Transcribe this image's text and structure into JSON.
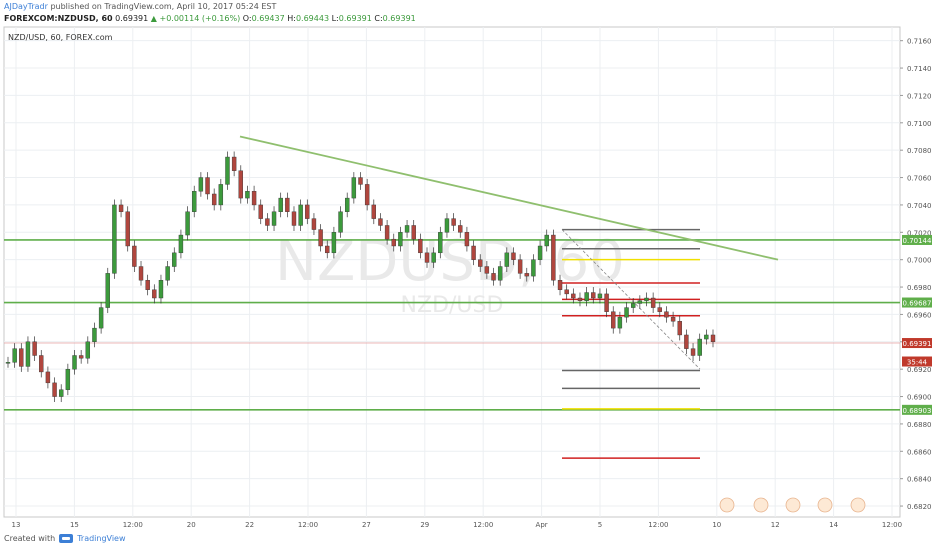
{
  "header": {
    "author": "AJDayTradr",
    "published_text": "published on TradingView.com, April 10, 2017 05:24 EST",
    "symbol": "FOREXCOM:NZDUSD, 60",
    "last": "0.69391",
    "change_arrow": "▲",
    "change": "+0.00114 (+0.16%)",
    "o_label": "O:",
    "o_value": "0.69437",
    "h_label": "H:",
    "h_value": "0.69443",
    "l_label": "L:",
    "l_value": "0.69391",
    "c_label": "C:",
    "c_value": "0.69391"
  },
  "footer": {
    "created_with": "Created with",
    "brand": "TradingView"
  },
  "colors": {
    "up": "#3c9a3c",
    "down": "#b0463e",
    "trendline": "#8fbf6e",
    "support_line": "#5fae4a",
    "fib_gray": "#666666",
    "fib_yellow": "#f0e000",
    "fib_red": "#d02020",
    "price_tag": "#c0392b"
  },
  "chart_data": {
    "type": "candlestick",
    "chart_title": "NZD/USD, 60, FOREX.com",
    "watermark": "NZDUSD, 60",
    "watermark_sub": "NZD/USD",
    "y_ticks": [
      "0.71600",
      "0.71400",
      "0.71200",
      "0.71000",
      "0.70800",
      "0.70600",
      "0.70400",
      "0.70200",
      "0.70000",
      "0.69800",
      "0.69600",
      "0.69400",
      "0.69200",
      "0.69000",
      "0.68800",
      "0.68600",
      "0.68400",
      "0.68200"
    ],
    "ylim": [
      0.6812,
      0.717
    ],
    "x_ticks": [
      "13",
      "15",
      "12:00",
      "20",
      "22",
      "12:00",
      "27",
      "29",
      "12:00",
      "Apr",
      "5",
      "12:00",
      "10",
      "12",
      "14",
      "12:00"
    ],
    "price_tags": [
      {
        "value": 0.70144,
        "label": "0.70144",
        "style": "green"
      },
      {
        "value": 0.69687,
        "label": "0.69687",
        "style": "green"
      },
      {
        "value": 0.69391,
        "label": "0.69391",
        "style": "red"
      },
      {
        "value": 0.69256,
        "label": "35:44",
        "style": "red"
      },
      {
        "value": 0.68903,
        "label": "0.68903",
        "style": "green"
      }
    ],
    "support_lines": [
      0.70144,
      0.69687,
      0.68903
    ],
    "last_price": 0.69391,
    "trendline": {
      "from": [
        "Mar 21",
        0.709
      ],
      "to": [
        "Apr 11 ~21:00",
        0.7
      ]
    },
    "fib_levels": [
      {
        "value": 0.7022,
        "color": "gray"
      },
      {
        "value": 0.7008,
        "color": "gray"
      },
      {
        "value": 0.7,
        "color": "yellow"
      },
      {
        "value": 0.6983,
        "color": "red"
      },
      {
        "value": 0.6971,
        "color": "red"
      },
      {
        "value": 0.6959,
        "color": "red"
      },
      {
        "value": 0.6919,
        "color": "gray"
      },
      {
        "value": 0.6906,
        "color": "gray"
      },
      {
        "value": 0.6891,
        "color": "yellow"
      },
      {
        "value": 0.6855,
        "color": "red"
      }
    ],
    "candles": [
      0.6925,
      0.6935,
      0.6922,
      0.694,
      0.693,
      0.6918,
      0.691,
      0.69,
      0.6905,
      0.692,
      0.693,
      0.6928,
      0.694,
      0.695,
      0.6965,
      0.699,
      0.704,
      0.7035,
      0.701,
      0.6995,
      0.6985,
      0.6978,
      0.6972,
      0.6985,
      0.6995,
      0.7005,
      0.7018,
      0.7035,
      0.705,
      0.706,
      0.7048,
      0.704,
      0.7055,
      0.7075,
      0.7065,
      0.7045,
      0.705,
      0.704,
      0.703,
      0.7025,
      0.7035,
      0.7045,
      0.7035,
      0.7025,
      0.704,
      0.703,
      0.7022,
      0.701,
      0.7005,
      0.702,
      0.7035,
      0.7045,
      0.706,
      0.7055,
      0.704,
      0.703,
      0.7025,
      0.7015,
      0.701,
      0.702,
      0.7025,
      0.7015,
      0.7005,
      0.6998,
      0.7005,
      0.702,
      0.703,
      0.7025,
      0.702,
      0.701,
      0.7,
      0.6995,
      0.699,
      0.6985,
      0.6995,
      0.7005,
      0.7,
      0.699,
      0.6988,
      0.7,
      0.701,
      0.7018,
      0.6985,
      0.6978,
      0.6975,
      0.6972,
      0.697,
      0.6976,
      0.6972,
      0.6975,
      0.6962,
      0.695,
      0.6958,
      0.6965,
      0.6968,
      0.697,
      0.6972,
      0.6965,
      0.6962,
      0.6958,
      0.6955,
      0.6945,
      0.6935,
      0.693,
      0.6942,
      0.6945,
      0.694
    ]
  }
}
